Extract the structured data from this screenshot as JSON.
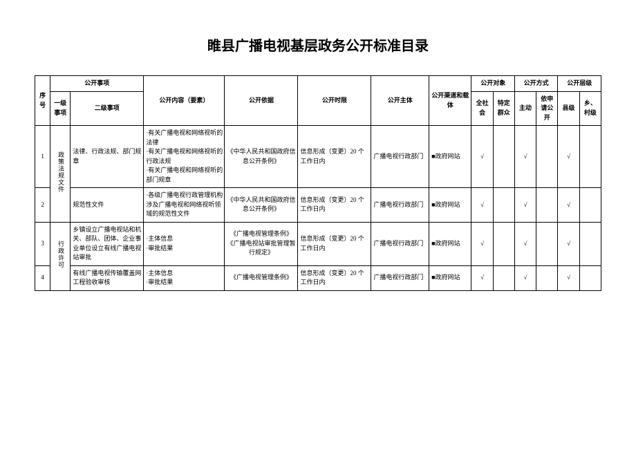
{
  "title": "睢县广播电视基层政务公开标准目录",
  "headers": {
    "seq": "序号",
    "item": "公开事项",
    "item_l1": "一级事项",
    "item_l2": "二级事项",
    "content": "公开内容（要素）",
    "basis": "公开依据",
    "timelimit": "公开时限",
    "subject": "公开主体",
    "channel": "公开渠道和载体",
    "target": "公开对象",
    "target_all": "全社会",
    "target_spec": "特定群众",
    "method": "公开方式",
    "method_active": "主动",
    "method_apply": "依申请公开",
    "level": "公开层级",
    "level_county": "县级",
    "level_village": "乡、村级"
  },
  "groups": [
    {
      "l1": "政策法规文件",
      "rows": [
        {
          "seq": "1",
          "l2": "法律、行政法规、部门规章",
          "content": "·有关广播电视和网络视听的法律\n·有关广播电视和网络视听的行政法规\n·有关广播电视和网络视听的部门规章",
          "basis": "《中华人民共和国政府信息公开条例》",
          "timelimit": "信息形成（变更）20 个工作日内",
          "subject": "广播电视行政部门",
          "channel": "■政府网站",
          "t_all": "√",
          "t_spec": "",
          "m_act": "√",
          "m_app": "",
          "lv_c": "√",
          "lv_v": ""
        },
        {
          "seq": "2",
          "l2": "规范性文件",
          "content": "·各级广播电视行政管理机构涉及广播电视和网络视听领域的规范性文件",
          "basis": "《中华人民共和国政府信息公开条例》",
          "timelimit": "信息形成（变更）20 个工作日内",
          "subject": "广播电视行政部门",
          "channel": "■政府网站",
          "t_all": "√",
          "t_spec": "",
          "m_act": "√",
          "m_app": "",
          "lv_c": "√",
          "lv_v": ""
        }
      ]
    },
    {
      "l1": "行政许可",
      "rows": [
        {
          "seq": "3",
          "l2": "乡镇设立广播电视站和机关、部队、团体、企业事业单位设立有线广播电视站审批",
          "content": "·主体信息\n·审批结果",
          "basis": "《广播电视管理条例》《广播电视站审批管理暂行规定》",
          "timelimit": "信息形成（变更）20 个工作日内",
          "subject": "广播电视行政部门",
          "channel": "■政府网站",
          "t_all": "√",
          "t_spec": "",
          "m_act": "√",
          "m_app": "",
          "lv_c": "√",
          "lv_v": ""
        },
        {
          "seq": "4",
          "l2": "有线广播电视传输覆盖网工程验收审核",
          "content": "·主体信息\n·审批结果",
          "basis": "《广播电视管理条例》",
          "timelimit": "信息形成（变更）20 个工作日内",
          "subject": "广播电视行政部门",
          "channel": "■政府网站",
          "t_all": "√",
          "t_spec": "",
          "m_act": "√",
          "m_app": "",
          "lv_c": "√",
          "lv_v": ""
        }
      ]
    }
  ]
}
